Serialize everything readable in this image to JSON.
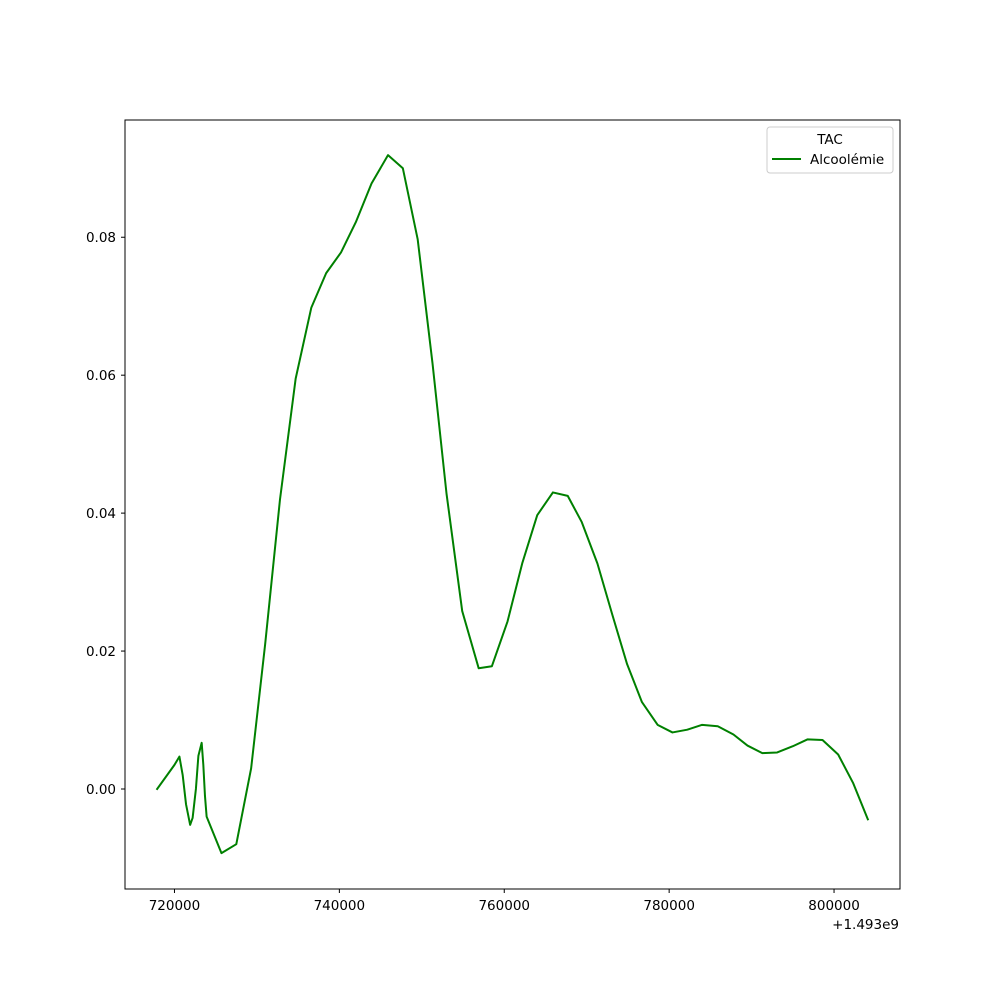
{
  "chart_data": {
    "type": "line",
    "title": "",
    "xlabel": "",
    "ylabel": "",
    "x_offset_label": "+1.493e9",
    "xlim": [
      714000,
      808000
    ],
    "ylim": [
      -0.0145,
      0.097
    ],
    "x_ticks": [
      720000,
      740000,
      760000,
      780000,
      800000
    ],
    "x_tick_labels": [
      "720000",
      "740000",
      "760000",
      "780000",
      "800000"
    ],
    "y_ticks": [
      0.0,
      0.02,
      0.04,
      0.06,
      0.08
    ],
    "y_tick_labels": [
      "0.00",
      "0.02",
      "0.04",
      "0.06",
      "0.08"
    ],
    "grid": false,
    "legend": {
      "title": "TAC",
      "placement": "top-right"
    },
    "series": [
      {
        "name": "Alcoolémie",
        "color": "#008000",
        "x": [
          717900,
          720000,
          720600,
          721000,
          721400,
          721900,
          722200,
          722600,
          722900,
          723300,
          723500,
          723700,
          723900,
          725700,
          727500,
          729300,
          731000,
          732800,
          734700,
          736600,
          738400,
          740200,
          742000,
          743900,
          745900,
          747700,
          749500,
          751300,
          753000,
          754900,
          756900,
          758500,
          760400,
          762200,
          764000,
          765900,
          767700,
          769400,
          771300,
          773100,
          774900,
          776700,
          778600,
          780400,
          782200,
          784000,
          785900,
          787800,
          789500,
          791300,
          793100,
          795000,
          796800,
          798600,
          800500,
          802300,
          804100
        ],
        "y": [
          0.0,
          0.0035,
          0.0047,
          0.002,
          -0.0022,
          -0.0052,
          -0.0042,
          0.0,
          0.0048,
          0.0067,
          0.0035,
          -0.001,
          -0.004,
          -0.0093,
          -0.008,
          0.003,
          0.021,
          0.042,
          0.0595,
          0.0698,
          0.0748,
          0.0778,
          0.0822,
          0.0878,
          0.0919,
          0.09,
          0.0797,
          0.0617,
          0.0428,
          0.0258,
          0.0175,
          0.0178,
          0.0243,
          0.0328,
          0.0397,
          0.043,
          0.0425,
          0.0387,
          0.0327,
          0.0253,
          0.0181,
          0.0126,
          0.0093,
          0.0082,
          0.0086,
          0.0093,
          0.0091,
          0.0079,
          0.0063,
          0.0052,
          0.0053,
          0.0062,
          0.0072,
          0.0071,
          0.005,
          0.0009,
          -0.0044
        ]
      }
    ]
  }
}
